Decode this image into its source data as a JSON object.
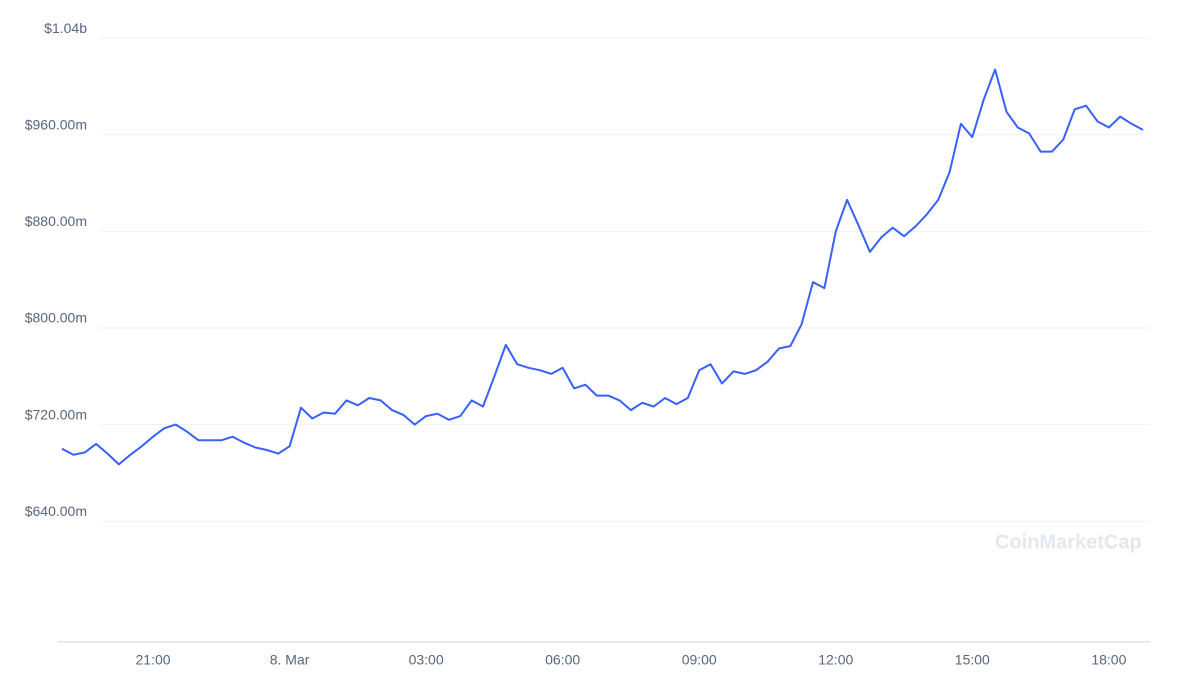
{
  "chart_data": {
    "type": "line",
    "categories": [
      null,
      null,
      null,
      null,
      null,
      null,
      null,
      null,
      "21:00",
      null,
      null,
      null,
      null,
      null,
      null,
      null,
      null,
      null,
      null,
      null,
      "8. Mar",
      null,
      null,
      null,
      null,
      null,
      null,
      null,
      null,
      null,
      null,
      null,
      "03:00",
      null,
      null,
      null,
      null,
      null,
      null,
      null,
      null,
      null,
      null,
      null,
      "06:00",
      null,
      null,
      null,
      null,
      null,
      null,
      null,
      null,
      null,
      null,
      null,
      "09:00",
      null,
      null,
      null,
      null,
      null,
      null,
      null,
      null,
      null,
      null,
      null,
      "12:00",
      null,
      null,
      null,
      null,
      null,
      null,
      null,
      null,
      null,
      null,
      null,
      "15:00",
      null,
      null,
      null,
      null,
      null,
      null,
      null,
      null,
      null,
      null,
      null,
      "18:00",
      null,
      null,
      null
    ],
    "series": [
      {
        "color": "#3861fb",
        "values": [
          700000000,
          695000000,
          697000000,
          704000000,
          696000000,
          687000000,
          695000000,
          702000000,
          710000000,
          717000000,
          720000000,
          714000000,
          707000000,
          707000000,
          707000000,
          710000000,
          705000000,
          701000000,
          699000000,
          696000000,
          702000000,
          734000000,
          725000000,
          730000000,
          729000000,
          740000000,
          736000000,
          742000000,
          740000000,
          732000000,
          728000000,
          720000000,
          727000000,
          729000000,
          724000000,
          727000000,
          740000000,
          735000000,
          760000000,
          786000000,
          770000000,
          767000000,
          765000000,
          762000000,
          767000000,
          750000000,
          753000000,
          744000000,
          744000000,
          740000000,
          732000000,
          738000000,
          735000000,
          742000000,
          737000000,
          742000000,
          765000000,
          770000000,
          754000000,
          764000000,
          762000000,
          765000000,
          772000000,
          783000000,
          785000000,
          803000000,
          838000000,
          833000000,
          880000000,
          906000000,
          885000000,
          863000000,
          875000000,
          883000000,
          876000000,
          884000000,
          894000000,
          906000000,
          929000000,
          969000000,
          958000000,
          989000000,
          1014000000,
          979000000,
          966000000,
          961000000,
          946000000,
          946000000,
          956000000,
          981000000,
          984000000,
          971000000,
          966000000,
          975000000,
          969000000,
          964000000
        ]
      }
    ],
    "ylim": [
      540000000,
      1050000000
    ],
    "yticks": [
      {
        "value": 640000000,
        "label": "$640.00m"
      },
      {
        "value": 720000000,
        "label": "$720.00m"
      },
      {
        "value": 800000000,
        "label": "$800.00m"
      },
      {
        "value": 880000000,
        "label": "$880.00m"
      },
      {
        "value": 960000000,
        "label": "$960.00m"
      },
      {
        "value": 1040000000,
        "label": "$1.04b"
      }
    ],
    "grid": true,
    "watermark": "CoinMarketCap"
  }
}
